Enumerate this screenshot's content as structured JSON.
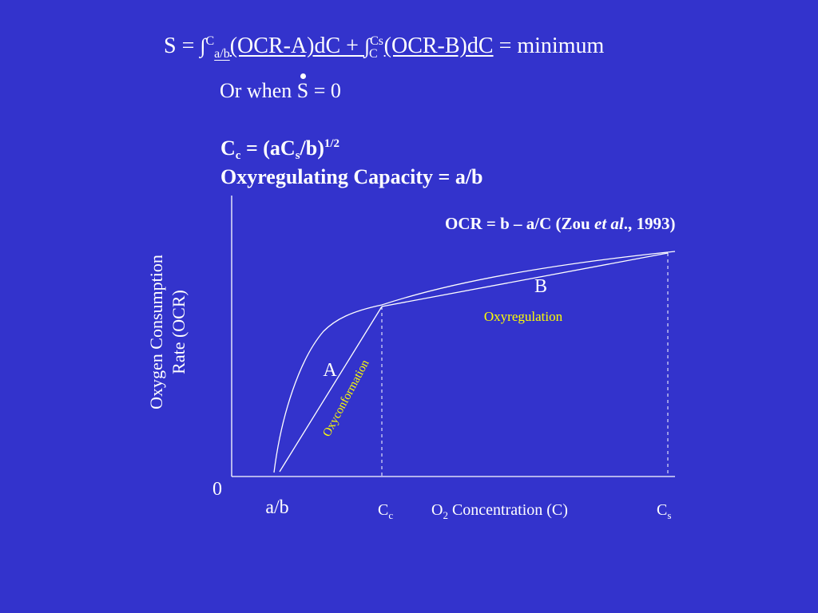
{
  "equation": {
    "lhs": "S = ",
    "int1": "∫",
    "int1_upper": "C",
    "int1_lower": "a/b",
    "int1_body": "(OCR-A)dC + ",
    "int2": "∫",
    "int2_upper": "Cs",
    "int2_lower": "C",
    "int2_body": "(OCR-B)dC",
    "rhs": " = minimum"
  },
  "or_when": {
    "prefix": "Or when ",
    "s": "S",
    "suffix": " = 0"
  },
  "cc_formula": {
    "c": "C",
    "c_sub": "c",
    "mid": " = (aC",
    "s_sub": "s",
    "end": "/b)",
    "power": "1/2"
  },
  "capacity": "Oxyregulating Capacity = a/b",
  "reference": {
    "pre": "OCR = b – a/C (Zou ",
    "etal": "et al",
    "post": "., 1993)"
  },
  "axis": {
    "ylabel_line1": "Oxygen Consumption",
    "ylabel_line2": "Rate (OCR)",
    "origin": "0",
    "ab": "a/b",
    "cc": "C",
    "cc_sub": "c",
    "xlabel_pre": "O",
    "xlabel_sub": "2",
    "xlabel_post": " Concentration (C)",
    "cs": "C",
    "cs_sub": "s"
  },
  "regions": {
    "a": "A",
    "b": "B",
    "oxyregulation": "Oxyregulation",
    "oxyconformation": "Oxyconformation"
  },
  "colors": {
    "background": "#3333cc",
    "text": "#ffffff",
    "annotation": "#ffff00"
  }
}
